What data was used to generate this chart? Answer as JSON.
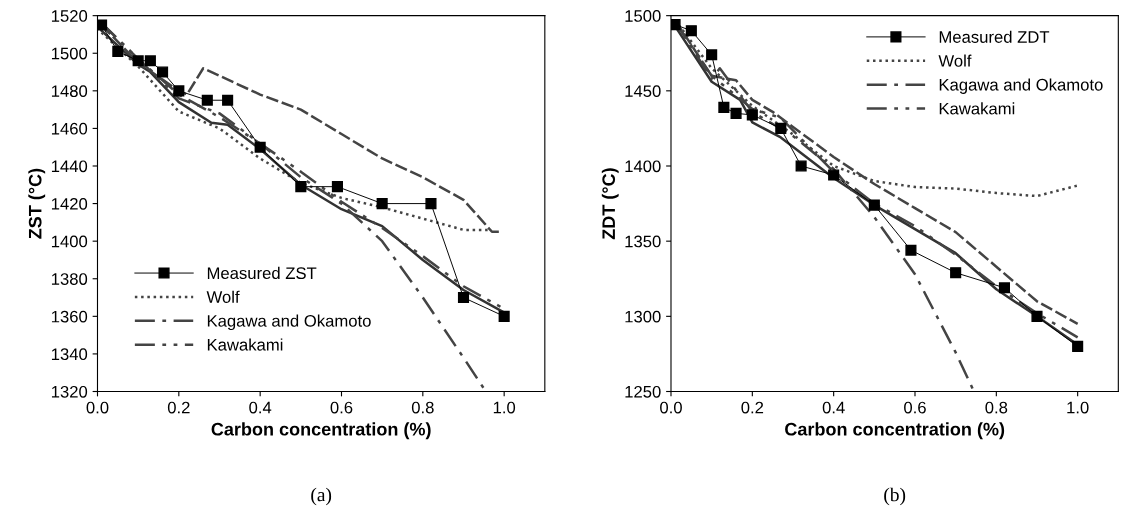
{
  "chart_data": [
    {
      "type": "line",
      "xlabel": "Carbon concentration (%)",
      "ylabel": "ZST (°C)",
      "annotations": [
        "(a)"
      ],
      "xlim": [
        0,
        1.1
      ],
      "ylim": [
        1320,
        1520
      ],
      "xticks": [
        {
          "value": 0,
          "label": "0.0"
        },
        {
          "value": 0.2,
          "label": "0.2"
        },
        {
          "value": 0.4,
          "label": "0.4"
        },
        {
          "value": 0.6,
          "label": "0.6"
        },
        {
          "value": 0.8,
          "label": "0.8"
        },
        {
          "value": 1.0,
          "label": "1.0"
        }
      ],
      "yticks": [
        1320,
        1340,
        1360,
        1380,
        1400,
        1420,
        1440,
        1460,
        1480,
        1500,
        1520
      ],
      "grid": false,
      "legend": "bottom left",
      "series": [
        {
          "name": "Measured ZST",
          "color": "#000000",
          "marker": "square",
          "line_style": "solid",
          "x": [
            0.01,
            0.05,
            0.1,
            0.13,
            0.16,
            0.2,
            0.27,
            0.32,
            0.4,
            0.5,
            0.59,
            0.7,
            0.82,
            0.9,
            1.0
          ],
          "values": [
            1515,
            1501,
            1496,
            1496,
            1490,
            1480,
            1475,
            1475,
            1450,
            1429,
            1429,
            1420,
            1420,
            1370,
            1360
          ]
        },
        {
          "color": "#333333",
          "line_style": "solid",
          "x": [
            0.01,
            0.1,
            0.13,
            0.2,
            0.28,
            0.32,
            0.4,
            0.5,
            0.6,
            0.7,
            0.8,
            0.9,
            1.0
          ],
          "values": [
            1512,
            1494,
            1490,
            1474,
            1463,
            1462,
            1449,
            1430,
            1417,
            1408,
            1390,
            1374,
            1362
          ]
        },
        {
          "color": "#444444",
          "line_style": "dashed",
          "x": [
            0.01,
            0.1,
            0.2,
            0.22,
            0.26,
            0.3,
            0.4,
            0.5,
            0.6,
            0.7,
            0.8,
            0.9,
            0.97,
            0.99
          ],
          "values": [
            1515,
            1495,
            1480,
            1478,
            1492,
            1488,
            1478,
            1470,
            1457,
            1444,
            1434,
            1422,
            1405,
            1405
          ]
        },
        {
          "name": "Wolf",
          "color": "#444444",
          "line_style": "dotted",
          "x": [
            0.01,
            0.1,
            0.2,
            0.3,
            0.4,
            0.5,
            0.6,
            0.7,
            0.8,
            0.9,
            0.96
          ],
          "values": [
            1511,
            1493,
            1469,
            1460,
            1444,
            1431,
            1423,
            1418,
            1412,
            1406,
            1406
          ]
        },
        {
          "name": "Kagawa and Okamoto",
          "color": "#444444",
          "line_style": "dashdot",
          "x": [
            0.01,
            0.1,
            0.2,
            0.3,
            0.4,
            0.5,
            0.6,
            0.7,
            0.8,
            0.9,
            0.955
          ],
          "values": [
            1516,
            1497,
            1478,
            1466,
            1452,
            1434,
            1420,
            1400,
            1370,
            1338,
            1320
          ]
        },
        {
          "name": "Kawakami",
          "color": "#444444",
          "line_style": "dashdotdot",
          "x": [
            0.01,
            0.1,
            0.2,
            0.3,
            0.4,
            0.5,
            0.6,
            0.7,
            0.8,
            0.9,
            1.0
          ],
          "values": [
            1516,
            1497,
            1476,
            1468,
            1452,
            1437,
            1421,
            1407,
            1392,
            1376,
            1364
          ]
        }
      ]
    },
    {
      "type": "line",
      "xlabel": "Carbon concentration (%)",
      "ylabel": "ZDT (°C)",
      "annotations": [
        "(b)"
      ],
      "xlim": [
        0,
        1.1
      ],
      "ylim": [
        1250,
        1500
      ],
      "xticks": [
        {
          "value": 0,
          "label": "0.0"
        },
        {
          "value": 0.2,
          "label": "0.2"
        },
        {
          "value": 0.4,
          "label": "0.4"
        },
        {
          "value": 0.6,
          "label": "0.6"
        },
        {
          "value": 0.8,
          "label": "0.8"
        },
        {
          "value": 1.0,
          "label": "1.0"
        }
      ],
      "yticks": [
        1250,
        1300,
        1350,
        1400,
        1450,
        1500
      ],
      "grid": false,
      "legend": "top right",
      "series": [
        {
          "name": "Measured ZDT",
          "color": "#000000",
          "marker": "square",
          "line_style": "solid",
          "x": [
            0.01,
            0.05,
            0.1,
            0.13,
            0.16,
            0.2,
            0.27,
            0.32,
            0.4,
            0.5,
            0.59,
            0.7,
            0.82,
            0.9,
            1.0
          ],
          "values": [
            1494,
            1490,
            1474,
            1439,
            1435,
            1434,
            1425,
            1400,
            1394,
            1374,
            1344,
            1329,
            1319,
            1300,
            1280
          ]
        },
        {
          "color": "#333333",
          "line_style": "solid",
          "x": [
            0.01,
            0.1,
            0.17,
            0.2,
            0.27,
            0.4,
            0.5,
            0.6,
            0.7,
            0.8,
            0.9,
            1.0
          ],
          "values": [
            1493,
            1456,
            1444,
            1429,
            1419,
            1392,
            1374,
            1358,
            1342,
            1318,
            1300,
            1281
          ]
        },
        {
          "color": "#444444",
          "line_style": "dashed",
          "x": [
            0.01,
            0.1,
            0.16,
            0.2,
            0.25,
            0.3,
            0.4,
            0.5,
            0.6,
            0.7,
            0.8,
            0.9,
            1.0
          ],
          "values": [
            1497,
            1460,
            1457,
            1444,
            1436,
            1426,
            1406,
            1388,
            1372,
            1356,
            1333,
            1310,
            1295
          ]
        },
        {
          "name": "Wolf",
          "color": "#444444",
          "line_style": "dotted",
          "x": [
            0.01,
            0.1,
            0.2,
            0.3,
            0.4,
            0.5,
            0.6,
            0.7,
            0.8,
            0.9,
            1.0
          ],
          "values": [
            1497,
            1465,
            1440,
            1421,
            1400,
            1390,
            1386,
            1385,
            1382,
            1380,
            1387
          ]
        },
        {
          "name": "Kagawa and Okamoto",
          "color": "#444444",
          "line_style": "dashdot",
          "x": [
            0.01,
            0.1,
            0.12,
            0.2,
            0.3,
            0.4,
            0.5,
            0.6,
            0.7,
            0.745
          ],
          "values": [
            1496,
            1458,
            1465,
            1436,
            1420,
            1398,
            1366,
            1328,
            1276,
            1250
          ]
        },
        {
          "name": "Kawakami",
          "color": "#444444",
          "line_style": "dashdotdot",
          "x": [
            0.01,
            0.1,
            0.2,
            0.27,
            0.4,
            0.5,
            0.6,
            0.7,
            0.8,
            0.9,
            1.0
          ],
          "values": [
            1496,
            1460,
            1438,
            1432,
            1396,
            1375,
            1360,
            1341,
            1320,
            1302,
            1286
          ]
        }
      ]
    }
  ]
}
